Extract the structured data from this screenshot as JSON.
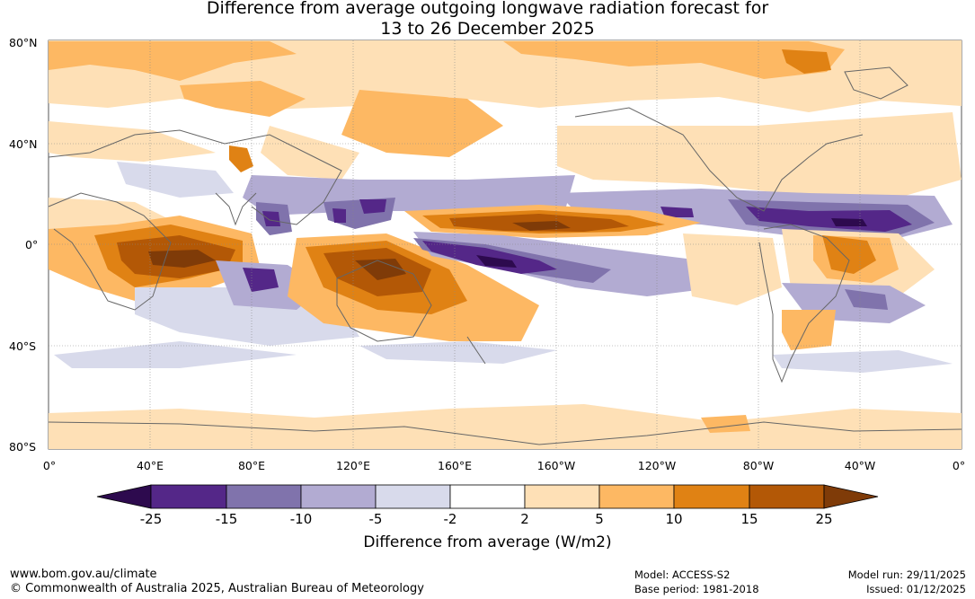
{
  "title": {
    "line1": "Difference from average outgoing longwave radiation forecast for",
    "line2": "13 to 26 December 2025"
  },
  "map": {
    "lat_labels": [
      "80°N",
      "40°N",
      "0°",
      "40°S",
      "80°S"
    ],
    "lon_labels": [
      "0°",
      "40°E",
      "80°E",
      "120°E",
      "160°E",
      "160°W",
      "120°W",
      "80°W",
      "40°W",
      "0°"
    ],
    "anomaly_regions": [
      {
        "region": "Arctic / high northern latitudes",
        "category": "2 to 10"
      },
      {
        "region": "Eastern Africa / Indian Ocean",
        "category": "15 to 25"
      },
      {
        "region": "Northern Australia / Indonesia",
        "category": "15 to 25"
      },
      {
        "region": "Central Pacific north of equator",
        "category": "15 to 25"
      },
      {
        "region": "Western Pacific south of equator",
        "category": "-25 to -15"
      },
      {
        "region": "Central America / Caribbean",
        "category": "-25 to -15"
      },
      {
        "region": "Northern South America",
        "category": "10 to 15"
      },
      {
        "region": "Southern Ocean / Antarctic margin",
        "category": "2 to 5"
      }
    ]
  },
  "colorbar": {
    "colors": [
      "#2d0a4e",
      "#542788",
      "#8073ac",
      "#b2abd2",
      "#d8daeb",
      "#ffffff",
      "#fee0b6",
      "#fdb863",
      "#e08214",
      "#b35806",
      "#7f3b08"
    ],
    "ticks": [
      "-25",
      "-15",
      "-10",
      "-5",
      "-2",
      "2",
      "5",
      "10",
      "15",
      "25"
    ],
    "label": "Difference from average (W/m2)"
  },
  "footer": {
    "website": "www.bom.gov.au/climate",
    "copyright": "© Commonwealth of Australia 2025, Australian Bureau of Meteorology",
    "model": "Model: ACCESS-S2",
    "base_period": "Base period: 1981-2018",
    "model_run": "Model run: 29/11/2025",
    "issued": "Issued: 01/12/2025"
  }
}
